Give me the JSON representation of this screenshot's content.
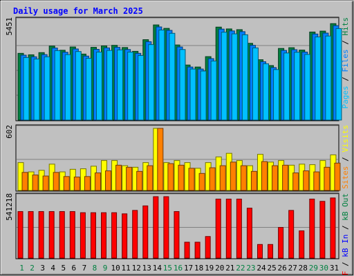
{
  "chart_data": [
    {
      "type": "bar",
      "title": "Daily usage for March 2025",
      "ymax_label": "5451",
      "ylim": [
        0,
        5451
      ],
      "grid": true,
      "categories": [
        "1",
        "2",
        "3",
        "4",
        "5",
        "6",
        "7",
        "8",
        "9",
        "10",
        "11",
        "12",
        "13",
        "14",
        "15",
        "16",
        "17",
        "18",
        "19",
        "20",
        "21",
        "22",
        "23",
        "24",
        "25",
        "26",
        "27",
        "28",
        "29",
        "30",
        "31"
      ],
      "weekend_days": [
        "1",
        "2",
        "8",
        "9",
        "15",
        "16",
        "22",
        "23",
        "29",
        "30"
      ],
      "series": [
        {
          "name": "Hits",
          "color": "#008040",
          "values": [
            3660,
            3580,
            3700,
            4060,
            3830,
            4010,
            3620,
            3990,
            4070,
            4100,
            3980,
            3770,
            4410,
            5220,
            5030,
            4120,
            3020,
            2910,
            3480,
            5100,
            5000,
            4960,
            4210,
            3310,
            2990,
            3930,
            3970,
            3840,
            4830,
            4880,
            5290
          ]
        },
        {
          "name": "Files",
          "color": "#0080ff",
          "values": [
            3560,
            3470,
            3590,
            3950,
            3720,
            3900,
            3510,
            3880,
            3960,
            3990,
            3870,
            3660,
            4300,
            5110,
            4920,
            4010,
            2910,
            2800,
            3370,
            4990,
            4890,
            4850,
            4100,
            3200,
            2880,
            3820,
            3860,
            3730,
            4720,
            4770,
            5180
          ]
        },
        {
          "name": "Pages",
          "color": "#00c0ff",
          "values": [
            3430,
            3350,
            3470,
            3810,
            3590,
            3760,
            3390,
            3730,
            3820,
            3850,
            3730,
            3540,
            4140,
            4940,
            4760,
            3870,
            2800,
            2690,
            3240,
            4820,
            4730,
            4680,
            3960,
            3090,
            2770,
            3680,
            3720,
            3600,
            4560,
            4610,
            5020
          ]
        }
      ],
      "legend": [
        "Hits",
        "Files",
        "Pages"
      ],
      "legend_position": "right"
    },
    {
      "type": "bar",
      "ymax_label": "602",
      "ylim": [
        0,
        602
      ],
      "grid": true,
      "categories": [
        "1",
        "2",
        "3",
        "4",
        "5",
        "6",
        "7",
        "8",
        "9",
        "10",
        "11",
        "12",
        "13",
        "14",
        "15",
        "16",
        "17",
        "18",
        "19",
        "20",
        "21",
        "22",
        "23",
        "24",
        "25",
        "26",
        "27",
        "28",
        "29",
        "30",
        "31"
      ],
      "series": [
        {
          "name": "Visits",
          "color": "#ffff00",
          "values": [
            270,
            180,
            195,
            255,
            180,
            205,
            210,
            235,
            290,
            290,
            240,
            225,
            270,
            602,
            270,
            290,
            270,
            215,
            270,
            325,
            360,
            290,
            240,
            350,
            275,
            290,
            245,
            255,
            250,
            290,
            345
          ]
        },
        {
          "name": "Sites",
          "color": "#ff8000",
          "values": [
            175,
            150,
            140,
            175,
            135,
            130,
            135,
            170,
            190,
            245,
            225,
            185,
            240,
            602,
            260,
            245,
            215,
            165,
            220,
            240,
            275,
            240,
            185,
            280,
            240,
            245,
            170,
            190,
            180,
            225,
            265
          ]
        }
      ],
      "legend": [
        "Visits",
        "Sites"
      ],
      "legend_position": "right"
    },
    {
      "type": "bar",
      "ymax_label": "541218",
      "ylim": [
        0,
        541218
      ],
      "grid": true,
      "categories": [
        "1",
        "2",
        "3",
        "4",
        "5",
        "6",
        "7",
        "8",
        "9",
        "10",
        "11",
        "12",
        "13",
        "14",
        "15",
        "16",
        "17",
        "18",
        "19",
        "20",
        "21",
        "22",
        "23",
        "24",
        "25",
        "26",
        "27",
        "28",
        "29",
        "30",
        "31"
      ],
      "series": [
        {
          "name": "kB F",
          "color": "#ff0000",
          "values": [
            410000,
            410000,
            410000,
            410000,
            410000,
            410000,
            400000,
            400000,
            400000,
            400000,
            390000,
            420000,
            460000,
            541218,
            541218,
            410000,
            140000,
            140000,
            190000,
            520000,
            520000,
            520000,
            440000,
            120000,
            120000,
            270000,
            420000,
            240000,
            520000,
            500000,
            530000
          ]
        }
      ],
      "legend": [
        "kB F",
        "kB In",
        "kB Out"
      ],
      "legend_position": "right"
    }
  ],
  "legend_text": {
    "top": [
      {
        "label": "Pages",
        "color": "#00c0ff"
      },
      {
        "label": " / ",
        "color": "#000000"
      },
      {
        "label": "Files",
        "color": "#0080ff"
      },
      {
        "label": " / ",
        "color": "#000000"
      },
      {
        "label": "Hits",
        "color": "#008040"
      }
    ],
    "middle": [
      {
        "label": "Sites",
        "color": "#ff8000"
      },
      {
        "label": " / ",
        "color": "#000000"
      },
      {
        "label": "Visits",
        "color": "#ffff00"
      }
    ],
    "bottom": [
      {
        "label": "kB F",
        "color": "#ff0000"
      },
      {
        "label": " / ",
        "color": "#000000"
      },
      {
        "label": "kB In",
        "color": "#0000ff"
      },
      {
        "label": " / ",
        "color": "#000000"
      },
      {
        "label": "kB Out",
        "color": "#008040"
      }
    ]
  },
  "colors": {
    "title": "#0000ff",
    "weekday_label": "#000000",
    "weekend_label": "#008040",
    "panel_bg": "#c0c0c0",
    "grid": "#808080"
  }
}
